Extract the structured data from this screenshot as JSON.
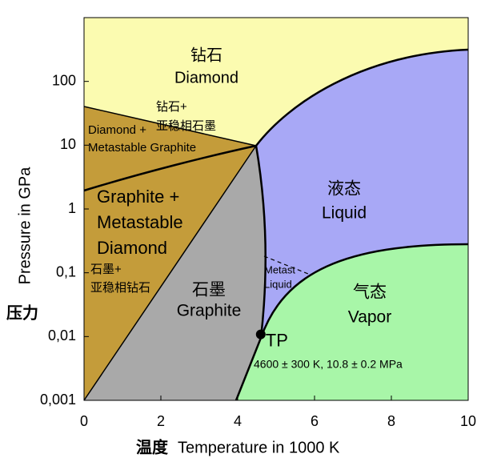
{
  "chart_data": {
    "type": "phase-diagram",
    "xlabel_zh": "温度",
    "xlabel": "Temperature in 1000 K",
    "ylabel": "Pressure in GPa",
    "ylabel_zh": "压力",
    "xlim": [
      0,
      10
    ],
    "xticks": [
      0,
      2,
      4,
      6,
      8,
      10
    ],
    "ylim": [
      0.001,
      1000
    ],
    "log_y": true,
    "yticks": [
      {
        "value": 0.001,
        "label": "0,001"
      },
      {
        "value": 0.01,
        "label": "0,01"
      },
      {
        "value": 0.1,
        "label": "0,1"
      },
      1,
      10,
      100
    ],
    "regions": [
      {
        "lines": [
          "钻石",
          "Diamond"
        ]
      },
      {
        "lines": [
          "钻石+",
          "亚稳相石墨"
        ]
      },
      {
        "lines": [
          "Diamond +",
          "Metastable Graphite"
        ]
      },
      {
        "lines": [
          "Graphite +",
          "Metastable",
          "Diamond"
        ]
      },
      {
        "lines": [
          "石墨+",
          "亚稳相钻石"
        ]
      },
      {
        "lines": [
          "石墨",
          "Graphite"
        ]
      },
      {
        "lines": [
          "液态",
          "Liquid"
        ]
      },
      {
        "lines": [
          "Metast",
          "Liquid"
        ]
      },
      {
        "lines": [
          "气态",
          "Vapor"
        ]
      }
    ],
    "triple_point": {
      "label": "TP",
      "note": "4600 ± 300 K, 10.8 ± 0.2 MPa",
      "x": 4.6,
      "y": 0.0108
    }
  }
}
